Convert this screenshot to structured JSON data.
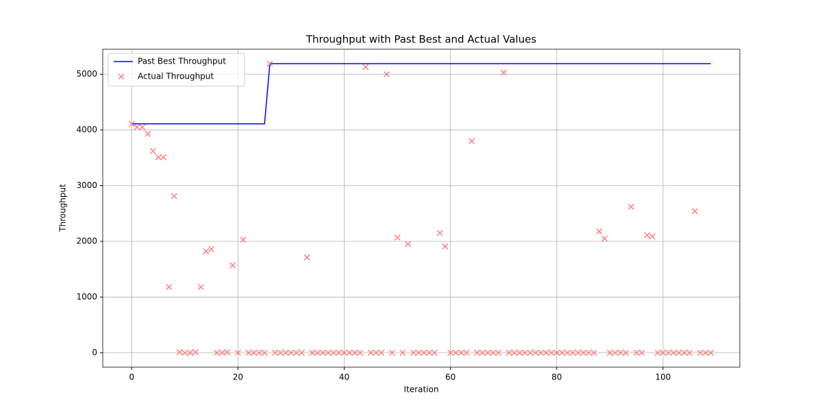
{
  "chart_data": {
    "type": "line",
    "title": "Throughput with Past Best and Actual Values",
    "x_label": "Iteration",
    "y_label": "Throughput",
    "x": [
      0,
      1,
      2,
      3,
      4,
      5,
      6,
      7,
      8,
      9,
      10,
      11,
      12,
      13,
      14,
      15,
      16,
      17,
      18,
      19,
      20,
      21,
      22,
      23,
      24,
      25,
      26,
      27,
      28,
      29,
      30,
      31,
      32,
      33,
      34,
      35,
      36,
      37,
      38,
      39,
      40,
      41,
      42,
      43,
      44,
      45,
      46,
      47,
      48,
      49,
      50,
      51,
      52,
      53,
      54,
      55,
      56,
      57,
      58,
      59,
      60,
      61,
      62,
      63,
      64,
      65,
      66,
      67,
      68,
      69,
      70,
      71,
      72,
      73,
      74,
      75,
      76,
      77,
      78,
      79,
      80,
      81,
      82,
      83,
      84,
      85,
      86,
      87,
      88,
      89,
      90,
      91,
      92,
      93,
      94,
      95,
      96,
      97,
      98,
      99,
      100,
      101,
      102,
      103,
      104,
      105,
      106,
      107,
      108,
      109
    ],
    "series": [
      {
        "name": "Past Best Throughput",
        "color": "#0000ff",
        "mark": "line",
        "values": [
          4110,
          4110,
          4110,
          4110,
          4110,
          4110,
          4110,
          4110,
          4110,
          4110,
          4110,
          4110,
          4110,
          4110,
          4110,
          4110,
          4110,
          4110,
          4110,
          4110,
          4110,
          4110,
          4110,
          4110,
          4110,
          4110,
          5190,
          5190,
          5190,
          5190,
          5190,
          5190,
          5190,
          5190,
          5190,
          5190,
          5190,
          5190,
          5190,
          5190,
          5190,
          5190,
          5190,
          5190,
          5190,
          5190,
          5190,
          5190,
          5190,
          5190,
          5190,
          5190,
          5190,
          5190,
          5190,
          5190,
          5190,
          5190,
          5190,
          5190,
          5190,
          5190,
          5190,
          5190,
          5190,
          5190,
          5190,
          5190,
          5190,
          5190,
          5190,
          5190,
          5190,
          5190,
          5190,
          5190,
          5190,
          5190,
          5190,
          5190,
          5190,
          5190,
          5190,
          5190,
          5190,
          5190,
          5190,
          5190,
          5190,
          5190,
          5190,
          5190,
          5190,
          5190,
          5190,
          5190,
          5190,
          5190,
          5190,
          5190,
          5190,
          5190,
          5190,
          5190,
          5190,
          5190,
          5190,
          5190,
          5190,
          5190
        ]
      },
      {
        "name": "Actual Throughput",
        "color": "#ff7f7f",
        "mark": "x",
        "values": [
          4110,
          4050,
          4050,
          3930,
          3620,
          3510,
          3510,
          1180,
          2810,
          10,
          0,
          0,
          10,
          1180,
          1820,
          1860,
          0,
          0,
          10,
          1570,
          0,
          2030,
          0,
          0,
          0,
          0,
          5190,
          0,
          0,
          0,
          0,
          0,
          0,
          1710,
          0,
          0,
          0,
          0,
          0,
          0,
          0,
          0,
          0,
          0,
          5130,
          0,
          0,
          0,
          5000,
          0,
          2070,
          0,
          1950,
          0,
          0,
          0,
          0,
          0,
          2150,
          1910,
          0,
          0,
          0,
          0,
          3800,
          0,
          0,
          0,
          0,
          0,
          5030,
          0,
          0,
          0,
          0,
          0,
          0,
          0,
          0,
          0,
          0,
          0,
          0,
          0,
          0,
          0,
          0,
          0,
          2180,
          2050,
          0,
          0,
          0,
          0,
          2620,
          0,
          0,
          2110,
          2090,
          0,
          0,
          0,
          0,
          0,
          0,
          0,
          2540,
          0,
          0,
          0
        ]
      }
    ],
    "xlim": [
      -5.45,
      114.45
    ],
    "ylim": [
      -259.5,
      5449.5
    ],
    "xticks": [
      0,
      20,
      40,
      60,
      80,
      100
    ],
    "yticks": [
      0,
      1000,
      2000,
      3000,
      4000,
      5000
    ],
    "grid": true,
    "legend": "upper-left"
  }
}
